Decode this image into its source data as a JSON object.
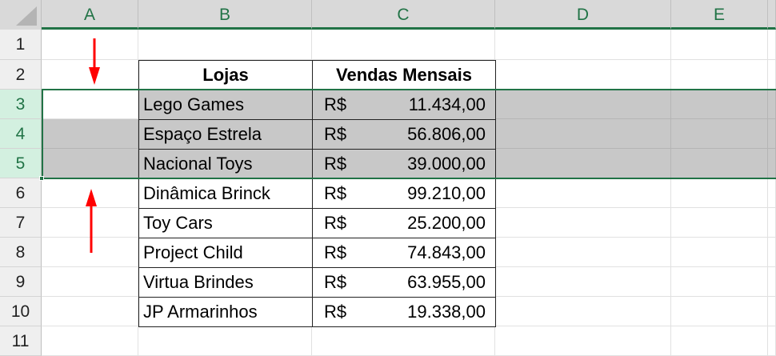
{
  "columns": [
    "A",
    "B",
    "C",
    "D",
    "E"
  ],
  "rows": [
    "1",
    "2",
    "3",
    "4",
    "5",
    "6",
    "7",
    "8",
    "9",
    "10",
    "11"
  ],
  "selected_rows": [
    3,
    4,
    5
  ],
  "table": {
    "headers": [
      "Lojas",
      "Vendas Mensais"
    ],
    "currency": "R$",
    "records": [
      {
        "loja": "Lego Games",
        "valor": "11.434,00"
      },
      {
        "loja": "Espaço Estrela",
        "valor": "56.806,00"
      },
      {
        "loja": "Nacional Toys",
        "valor": "39.000,00"
      },
      {
        "loja": "Dinâmica Brinck",
        "valor": "99.210,00"
      },
      {
        "loja": "Toy Cars",
        "valor": "25.200,00"
      },
      {
        "loja": "Project Child",
        "valor": "74.843,00"
      },
      {
        "loja": "Virtua Brindes",
        "valor": "63.955,00"
      },
      {
        "loja": "JP Armarinhos",
        "valor": "19.338,00"
      }
    ]
  },
  "colors": {
    "accent": "#217346",
    "selection": "#c8c8c8",
    "arrow": "#ff0000"
  }
}
